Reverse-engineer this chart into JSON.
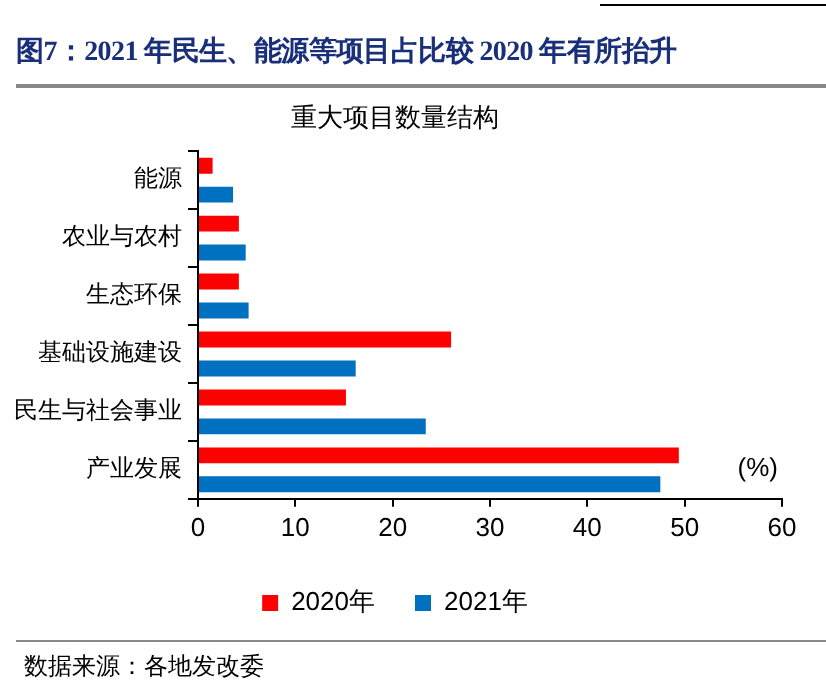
{
  "chart_data": {
    "type": "bar",
    "orientation": "horizontal",
    "title": "重大项目数量结构",
    "subtitle": "图7：2021 年民生、能源等项目占比较 2020 年有所抬升",
    "categories": [
      "能源",
      "农业与农村",
      "生态环保",
      "基础设施建设",
      "民生与社会事业",
      "产业发展"
    ],
    "series": [
      {
        "name": "2020年",
        "color": "#ff0000",
        "values": [
          1.5,
          4.2,
          4.2,
          26.0,
          15.2,
          49.4
        ]
      },
      {
        "name": "2021年",
        "color": "#0070c0",
        "values": [
          3.6,
          4.9,
          5.2,
          16.2,
          23.4,
          47.5
        ]
      }
    ],
    "xlim": [
      0,
      60
    ],
    "xticks": [
      0,
      10,
      20,
      30,
      40,
      50,
      60
    ],
    "grid": false,
    "legend": "bottom",
    "annotations": [
      "(%)",
      "数据来源：各地发改委"
    ]
  }
}
